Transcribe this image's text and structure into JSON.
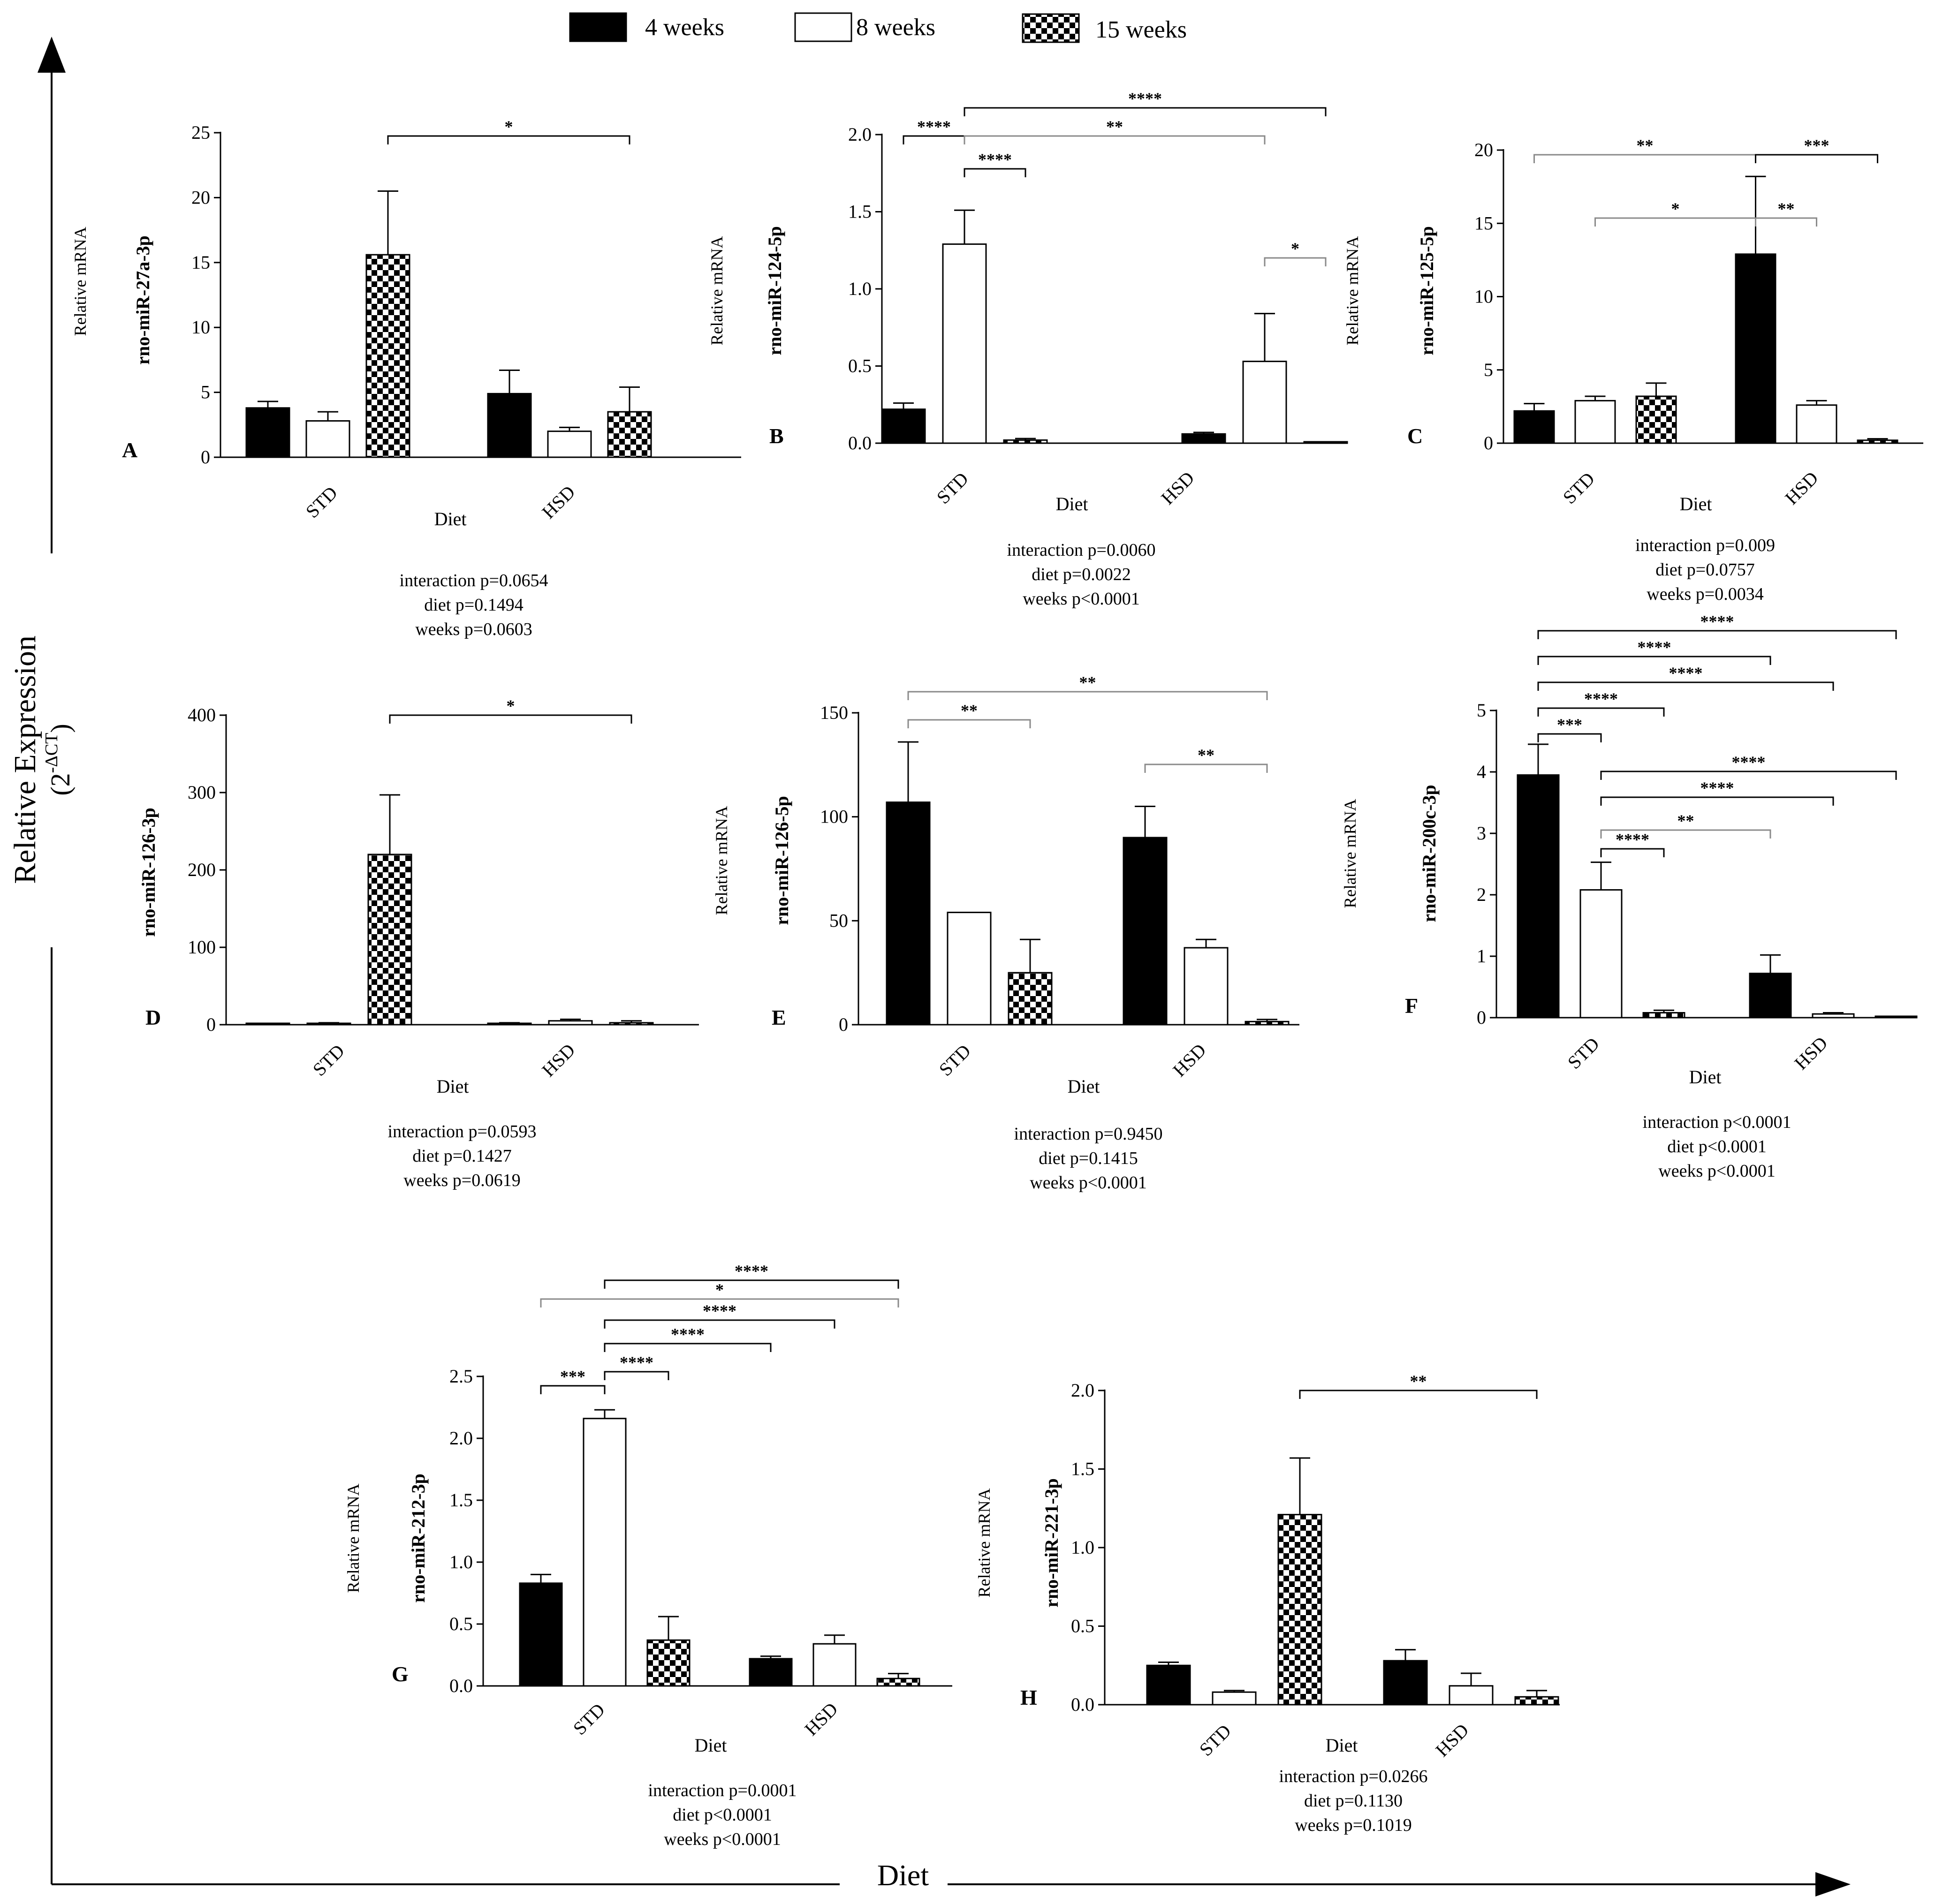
{
  "legend": {
    "items": [
      {
        "label": "4 weeks",
        "pattern": "solid"
      },
      {
        "label": "8 weeks",
        "pattern": "open"
      },
      {
        "label": "15 weeks",
        "pattern": "checker"
      }
    ]
  },
  "axes_global": {
    "y_label": "Relative Expression",
    "y_unit_base": "(2",
    "y_unit_exp": "-ΔCT",
    "y_unit_close": ")",
    "x_label": "Diet"
  },
  "colors": {
    "bar_4w": "#000000",
    "bar_8w": "#ffffff",
    "bar_15w_a": "#000000",
    "bar_15w_b": "#ffffff",
    "sig_line": "#000000",
    "sig_light": "#9a9a9a"
  },
  "chart_data": [
    {
      "type": "bar",
      "panel": "A",
      "ylabel_main": "rno-miR-27a-3p",
      "ylabel_sub": "Relative mRNA",
      "xlabel": "Diet",
      "categories": [
        "STD",
        "HSD"
      ],
      "ylim": [
        0,
        25
      ],
      "ticks": [
        0,
        5,
        10,
        15,
        20,
        25
      ],
      "series": [
        {
          "name": "4 weeks",
          "values": [
            3.8,
            4.9
          ],
          "errors": [
            0.5,
            1.8
          ]
        },
        {
          "name": "8 weeks",
          "values": [
            2.8,
            2.0
          ],
          "errors": [
            0.7,
            0.3
          ]
        },
        {
          "name": "15 weeks",
          "values": [
            15.6,
            3.5
          ],
          "errors": [
            4.9,
            1.9
          ]
        }
      ],
      "significance": [
        {
          "label": "*",
          "from": 2,
          "to": 5
        }
      ],
      "stats": [
        "interaction p=0.0654",
        "diet p=0.1494",
        "weeks p=0.0603"
      ]
    },
    {
      "type": "bar",
      "panel": "B",
      "ylabel_main": "rno-miR-124-5p",
      "ylabel_sub": "Relative mRNA",
      "xlabel": "Diet",
      "categories": [
        "STD",
        "HSD"
      ],
      "ylim": [
        0,
        2.0
      ],
      "ticks": [
        "0.0",
        "0.5",
        "1.0",
        "1.5",
        "2.0"
      ],
      "series": [
        {
          "name": "4 weeks",
          "values": [
            0.22,
            0.06
          ],
          "errors": [
            0.04,
            0.01
          ]
        },
        {
          "name": "8 weeks",
          "values": [
            1.29,
            0.53
          ],
          "errors": [
            0.22,
            0.31
          ]
        },
        {
          "name": "15 weeks",
          "values": [
            0.02,
            0.0
          ],
          "errors": [
            0.01,
            0.0
          ]
        }
      ],
      "significance": [
        {
          "label": "****",
          "from": 0,
          "to": 1
        },
        {
          "label": "****",
          "from": 1,
          "to": 5
        },
        {
          "label": "**",
          "from": 1,
          "to": 4
        },
        {
          "label": "****",
          "from": 1,
          "to": 2
        },
        {
          "label": "*",
          "from": 4,
          "to": 5
        }
      ],
      "stats": [
        "interaction p=0.0060",
        "diet p=0.0022",
        "weeks p<0.0001"
      ]
    },
    {
      "type": "bar",
      "panel": "C",
      "ylabel_main": "rno-miR-125-5p",
      "ylabel_sub": "Relative mRNA",
      "xlabel": "Diet",
      "categories": [
        "STD",
        "HSD"
      ],
      "ylim": [
        0,
        20
      ],
      "ticks": [
        0,
        5,
        10,
        15,
        20
      ],
      "series": [
        {
          "name": "4 weeks",
          "values": [
            2.2,
            12.9
          ],
          "errors": [
            0.5,
            5.3
          ]
        },
        {
          "name": "8 weeks",
          "values": [
            2.9,
            2.6
          ],
          "errors": [
            0.3,
            0.3
          ]
        },
        {
          "name": "15 weeks",
          "values": [
            3.2,
            0.2
          ],
          "errors": [
            0.9,
            0.1
          ]
        }
      ],
      "significance": [
        {
          "label": "**",
          "from": 0,
          "to": 3
        },
        {
          "label": "***",
          "from": 3,
          "to": 5
        },
        {
          "label": "*",
          "from": 1,
          "to": 3
        },
        {
          "label": "**",
          "from": 3,
          "to": 4
        }
      ],
      "stats": [
        "interaction p=0.009",
        "diet p=0.0757",
        "weeks p=0.0034"
      ]
    },
    {
      "type": "bar",
      "panel": "D",
      "ylabel_main": "rno-miR-126-3p",
      "ylabel_sub": "",
      "xlabel": "Diet",
      "categories": [
        "STD",
        "HSD"
      ],
      "ylim": [
        0,
        400
      ],
      "ticks": [
        0,
        100,
        200,
        300,
        400
      ],
      "series": [
        {
          "name": "4 weeks",
          "values": [
            0.5,
            1.5
          ],
          "errors": [
            0.3,
            1.0
          ]
        },
        {
          "name": "8 weeks",
          "values": [
            1.5,
            5.0
          ],
          "errors": [
            1.0,
            2.0
          ]
        },
        {
          "name": "15 weeks",
          "values": [
            220,
            2.5
          ],
          "errors": [
            77,
            2.5
          ]
        }
      ],
      "significance": [
        {
          "label": "*",
          "from": 2,
          "to": 5
        }
      ],
      "stats": [
        "interaction p=0.0593",
        "diet p=0.1427",
        "weeks p=0.0619"
      ]
    },
    {
      "type": "bar",
      "panel": "E",
      "ylabel_main": "rno-miR-126-5p",
      "ylabel_sub": "Relative mRNA",
      "xlabel": "Diet",
      "categories": [
        "STD",
        "HSD"
      ],
      "ylim": [
        0,
        150
      ],
      "ticks": [
        0,
        50,
        100,
        150
      ],
      "series": [
        {
          "name": "4 weeks",
          "values": [
            107,
            90
          ],
          "errors": [
            29,
            15
          ]
        },
        {
          "name": "8 weeks",
          "values": [
            54,
            37
          ],
          "errors": [
            0,
            4
          ]
        },
        {
          "name": "15 weeks",
          "values": [
            25,
            1.5
          ],
          "errors": [
            16,
            1
          ]
        }
      ],
      "significance": [
        {
          "label": "**",
          "from": 0,
          "to": 5
        },
        {
          "label": "**",
          "from": 0,
          "to": 2
        },
        {
          "label": "**",
          "from": 3,
          "to": 5
        }
      ],
      "stats": [
        "interaction p=0.9450",
        "diet p=0.1415",
        "weeks p<0.0001"
      ]
    },
    {
      "type": "bar",
      "panel": "F",
      "ylabel_main": "rno-miR-200c-3p",
      "ylabel_sub": "Relative mRNA",
      "xlabel": "Diet",
      "categories": [
        "STD",
        "HSD"
      ],
      "ylim": [
        0,
        5
      ],
      "ticks": [
        0,
        1,
        2,
        3,
        4,
        5
      ],
      "series": [
        {
          "name": "4 weeks",
          "values": [
            3.95,
            0.72
          ],
          "errors": [
            0.5,
            0.3
          ]
        },
        {
          "name": "8 weeks",
          "values": [
            2.08,
            0.06
          ],
          "errors": [
            0.45,
            0.02
          ]
        },
        {
          "name": "15 weeks",
          "values": [
            0.08,
            0.0
          ],
          "errors": [
            0.04,
            0.0
          ]
        }
      ],
      "significance": [
        {
          "label": "****",
          "from": 0,
          "to": 5
        },
        {
          "label": "****",
          "from": 0,
          "to": 3
        },
        {
          "label": "****",
          "from": 0,
          "to": 4
        },
        {
          "label": "****",
          "from": 0,
          "to": 2
        },
        {
          "label": "***",
          "from": 0,
          "to": 1
        },
        {
          "label": "****",
          "from": 1,
          "to": 5
        },
        {
          "label": "****",
          "from": 1,
          "to": 4
        },
        {
          "label": "**",
          "from": 1,
          "to": 3
        },
        {
          "label": "****",
          "from": 1,
          "to": 2
        }
      ],
      "stats": [
        "interaction p<0.0001",
        "diet p<0.0001",
        "weeks p<0.0001"
      ]
    },
    {
      "type": "bar",
      "panel": "G",
      "ylabel_main": "rno-miR-212-3p",
      "ylabel_sub": "Relative mRNA",
      "xlabel": "Diet",
      "categories": [
        "STD",
        "HSD"
      ],
      "ylim": [
        0,
        2.5
      ],
      "ticks": [
        "0.0",
        "0.5",
        "1.0",
        "1.5",
        "2.0",
        "2.5"
      ],
      "series": [
        {
          "name": "4 weeks",
          "values": [
            0.83,
            0.22
          ],
          "errors": [
            0.07,
            0.02
          ]
        },
        {
          "name": "8 weeks",
          "values": [
            2.16,
            0.34
          ],
          "errors": [
            0.07,
            0.07
          ]
        },
        {
          "name": "15 weeks",
          "values": [
            0.37,
            0.06
          ],
          "errors": [
            0.19,
            0.04
          ]
        }
      ],
      "significance": [
        {
          "label": "****",
          "from": 1,
          "to": 5
        },
        {
          "label": "*",
          "from": 0,
          "to": 5
        },
        {
          "label": "****",
          "from": 1,
          "to": 4
        },
        {
          "label": "****",
          "from": 1,
          "to": 3
        },
        {
          "label": "***",
          "from": 0,
          "to": 1
        },
        {
          "label": "****",
          "from": 1,
          "to": 2
        }
      ],
      "stats": [
        "interaction p=0.0001",
        "diet p<0.0001",
        "weeks p<0.0001"
      ]
    },
    {
      "type": "bar",
      "panel": "H",
      "ylabel_main": "rno-miR-221-3p",
      "ylabel_sub": "Relative mRNA",
      "xlabel": "Diet",
      "categories": [
        "STD",
        "HSD"
      ],
      "ylim": [
        0,
        2.0
      ],
      "ticks": [
        "0.0",
        "0.5",
        "1.0",
        "1.5",
        "2.0"
      ],
      "series": [
        {
          "name": "4 weeks",
          "values": [
            0.25,
            0.28
          ],
          "errors": [
            0.02,
            0.07
          ]
        },
        {
          "name": "8 weeks",
          "values": [
            0.08,
            0.12
          ],
          "errors": [
            0.01,
            0.08
          ]
        },
        {
          "name": "15 weeks",
          "values": [
            1.21,
            0.05
          ],
          "errors": [
            0.36,
            0.04
          ]
        }
      ],
      "significance": [
        {
          "label": "**",
          "from": 2,
          "to": 5
        }
      ],
      "stats": [
        "interaction p=0.0266",
        "diet p=0.1130",
        "weeks p=0.1019"
      ]
    }
  ]
}
